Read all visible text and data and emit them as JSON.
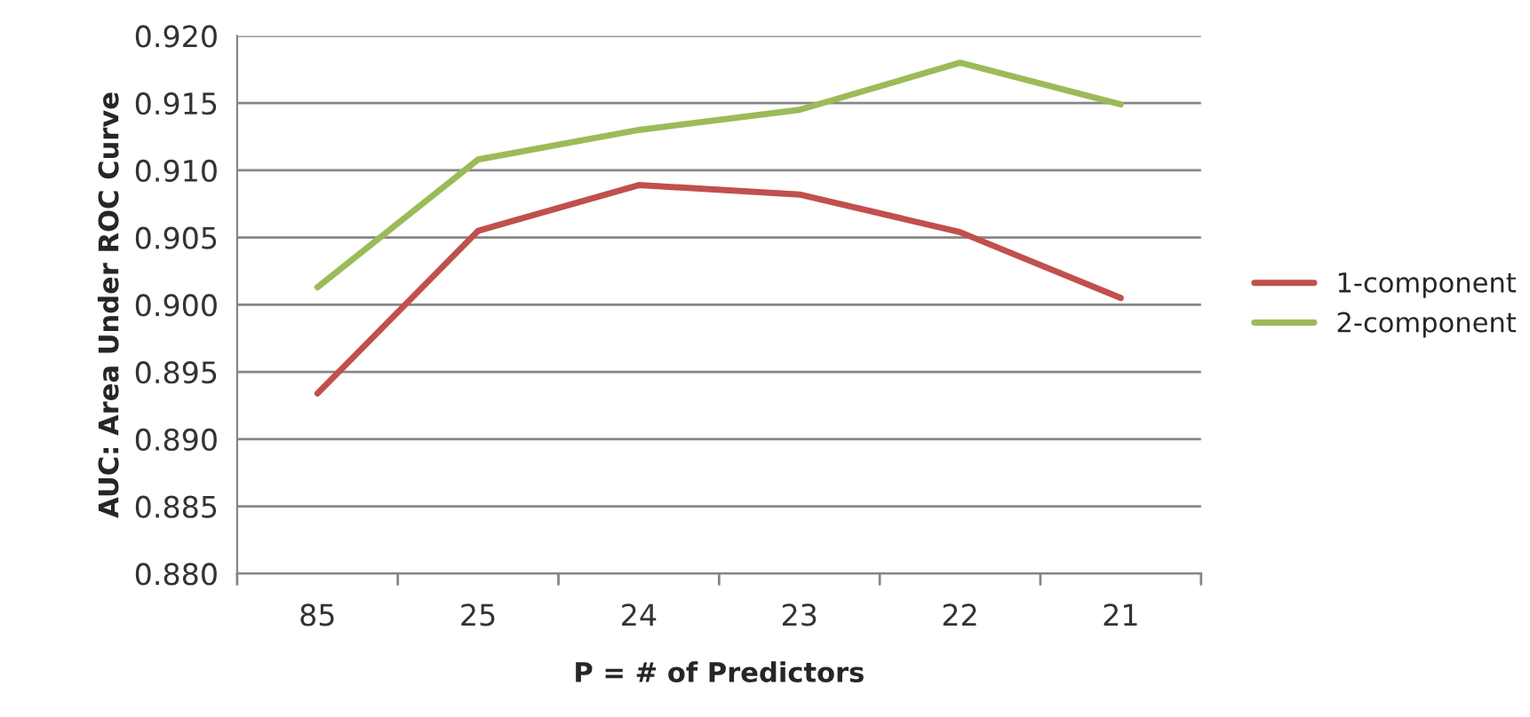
{
  "chart_data": {
    "type": "line",
    "xlabel": "P = # of Predictors",
    "ylabel": "AUC: Area Under ROC Curve",
    "categories": [
      "85",
      "25",
      "24",
      "23",
      "22",
      "21"
    ],
    "series": [
      {
        "name": "1-component",
        "color": "#c0504d",
        "values": [
          0.8934,
          0.9055,
          0.9089,
          0.9082,
          0.9054,
          0.9005
        ]
      },
      {
        "name": "2-component",
        "color": "#9bbb59",
        "values": [
          0.9013,
          0.9108,
          0.913,
          0.9145,
          0.918,
          0.9149
        ]
      }
    ],
    "ylim": [
      0.88,
      0.92
    ],
    "yticks": [
      {
        "value": 0.88,
        "label": "0.880"
      },
      {
        "value": 0.885,
        "label": "0.885"
      },
      {
        "value": 0.89,
        "label": "0.890"
      },
      {
        "value": 0.895,
        "label": "0.895"
      },
      {
        "value": 0.9,
        "label": "0.900"
      },
      {
        "value": 0.905,
        "label": "0.905"
      },
      {
        "value": 0.91,
        "label": "0.910"
      },
      {
        "value": 0.915,
        "label": "0.915"
      },
      {
        "value": 0.92,
        "label": "0.920"
      }
    ],
    "grid": "y",
    "legend": "right",
    "marker": "none",
    "line_style": "solid"
  }
}
